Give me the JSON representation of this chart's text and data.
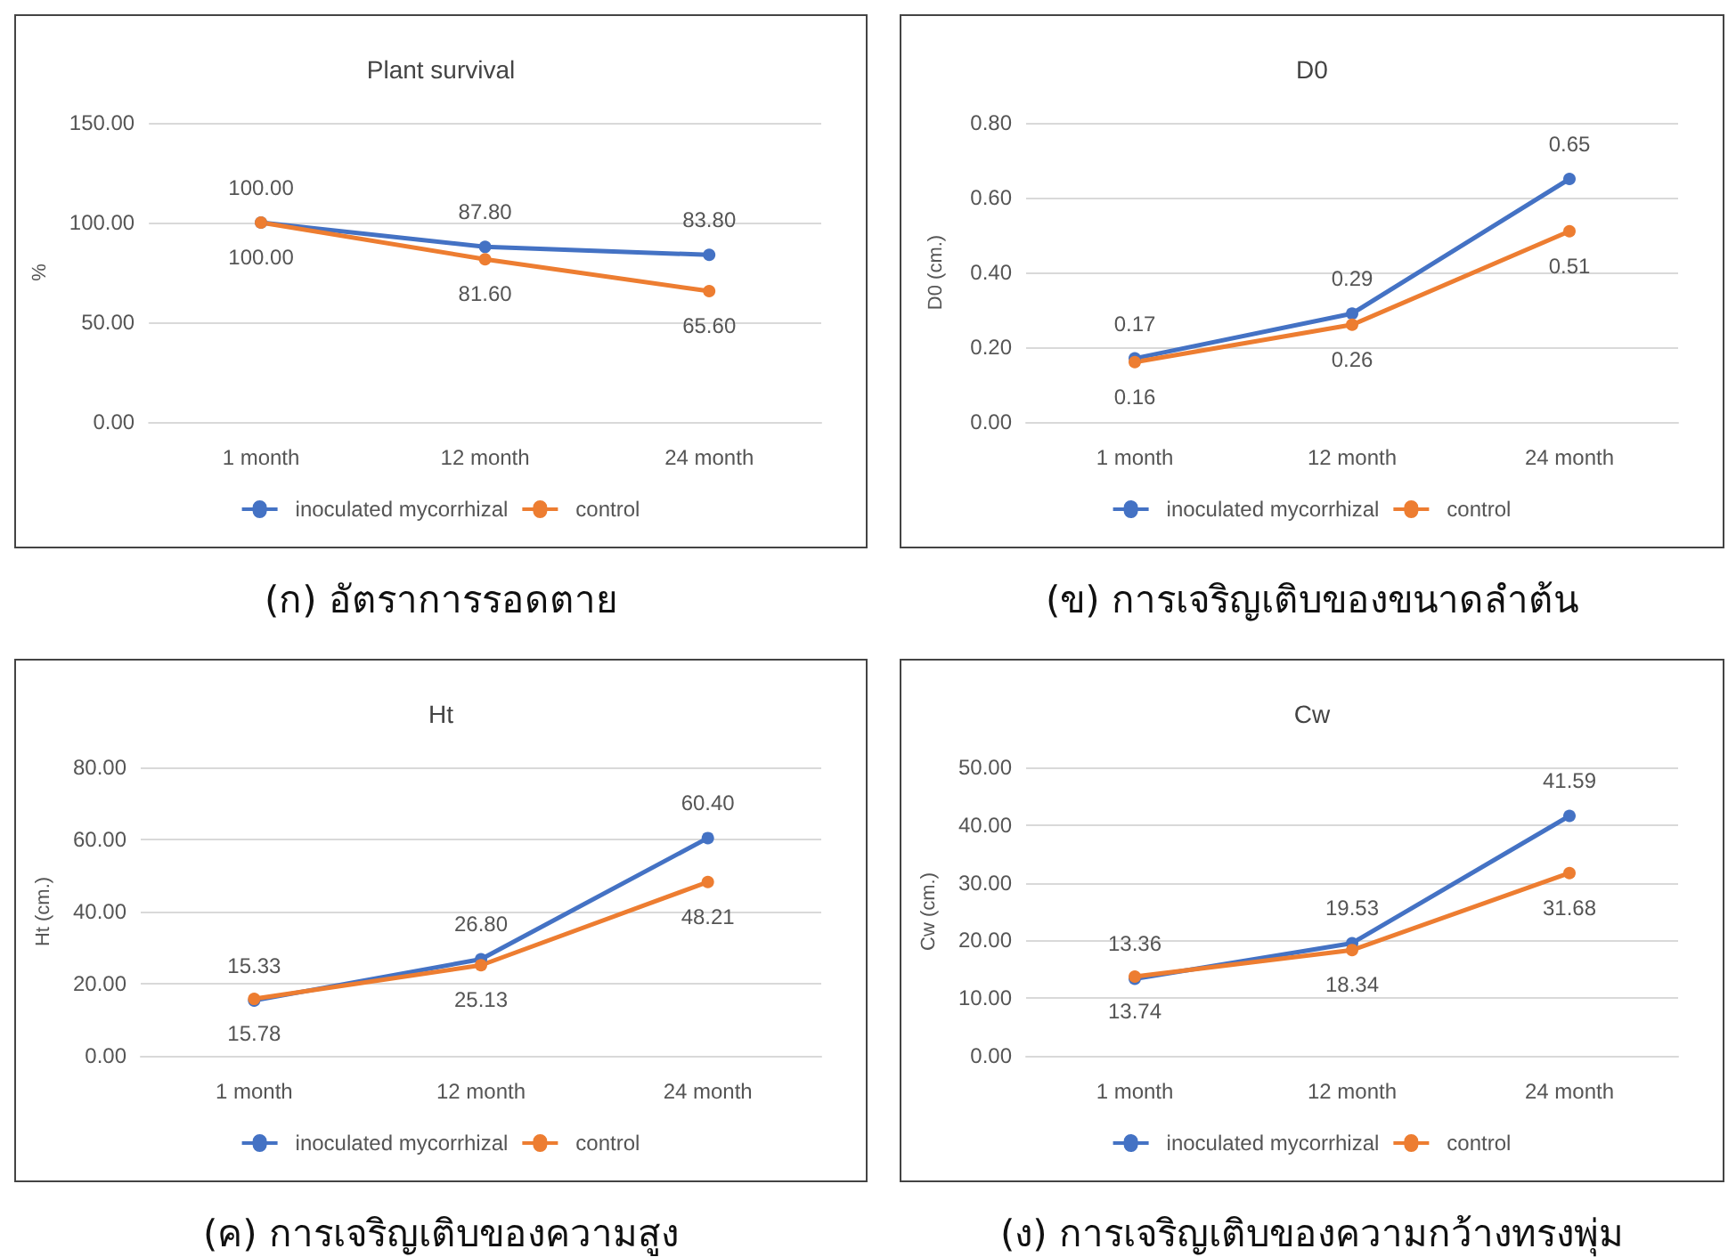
{
  "chart_data": [
    {
      "type": "line",
      "title": "Plant survival",
      "ylabel": "%",
      "categories": [
        "1 month",
        "12 month",
        "24 month"
      ],
      "series": [
        {
          "name": "inoculated mycorrhizal",
          "color": "#4472c4",
          "values": [
            100,
            87.8,
            83.8
          ],
          "value_labels": [
            "100.00",
            "87.80",
            "83.80"
          ]
        },
        {
          "name": "control",
          "color": "#ed7d31",
          "values": [
            100,
            81.6,
            65.6
          ],
          "value_labels": [
            "100.00",
            "81.60",
            "65.60"
          ]
        }
      ],
      "ylim": [
        0,
        150
      ],
      "yticks": [
        {
          "value": 0,
          "label": "0.00"
        },
        {
          "value": 50,
          "label": "50.00"
        },
        {
          "value": 100,
          "label": "100.00"
        },
        {
          "value": 150,
          "label": "150.00"
        }
      ],
      "grid": "y",
      "legend": "bottom",
      "marker": "circle",
      "annotations": [
        "(ก) อัตราการรอดตาย"
      ]
    },
    {
      "type": "line",
      "title": "D0",
      "ylabel": "D0 (cm.)",
      "categories": [
        "1 month",
        "12 month",
        "24 month"
      ],
      "series": [
        {
          "name": "inoculated mycorrhizal",
          "color": "#4472c4",
          "values": [
            0.17,
            0.29,
            0.65
          ],
          "value_labels": [
            "0.17",
            "0.29",
            "0.65"
          ]
        },
        {
          "name": "control",
          "color": "#ed7d31",
          "values": [
            0.16,
            0.26,
            0.51
          ],
          "value_labels": [
            "0.16",
            "0.26",
            "0.51"
          ]
        }
      ],
      "ylim": [
        0,
        0.8
      ],
      "yticks": [
        {
          "value": 0,
          "label": "0.00"
        },
        {
          "value": 0.2,
          "label": "0.20"
        },
        {
          "value": 0.4,
          "label": "0.40"
        },
        {
          "value": 0.6,
          "label": "0.60"
        },
        {
          "value": 0.8,
          "label": "0.80"
        }
      ],
      "grid": "y",
      "legend": "bottom",
      "marker": "circle",
      "annotations": [
        "(ข) การเจริญเติบของขนาดลำต้น"
      ]
    },
    {
      "type": "line",
      "title": "Ht",
      "ylabel": "Ht (cm.)",
      "categories": [
        "1 month",
        "12 month",
        "24 month"
      ],
      "series": [
        {
          "name": "inoculated mycorrhizal",
          "color": "#4472c4",
          "values": [
            15.33,
            26.8,
            60.4
          ],
          "value_labels": [
            "15.33",
            "26.80",
            "60.40"
          ]
        },
        {
          "name": "control",
          "color": "#ed7d31",
          "values": [
            15.78,
            25.13,
            48.21
          ],
          "value_labels": [
            "15.78",
            "25.13",
            "48.21"
          ]
        }
      ],
      "ylim": [
        0,
        80
      ],
      "yticks": [
        {
          "value": 0,
          "label": "0.00"
        },
        {
          "value": 20,
          "label": "20.00"
        },
        {
          "value": 40,
          "label": "40.00"
        },
        {
          "value": 60,
          "label": "60.00"
        },
        {
          "value": 80,
          "label": "80.00"
        }
      ],
      "grid": "y",
      "legend": "bottom",
      "marker": "circle",
      "annotations": [
        "(ค) การเจริญเติบของความสูง"
      ]
    },
    {
      "type": "line",
      "title": "Cw",
      "ylabel": "Cw (cm.)",
      "categories": [
        "1 month",
        "12 month",
        "24 month"
      ],
      "series": [
        {
          "name": "inoculated mycorrhizal",
          "color": "#4472c4",
          "values": [
            13.36,
            19.53,
            41.59
          ],
          "value_labels": [
            "13.36",
            "19.53",
            "41.59"
          ]
        },
        {
          "name": "control",
          "color": "#ed7d31",
          "values": [
            13.74,
            18.34,
            31.68
          ],
          "value_labels": [
            "13.74",
            "18.34",
            "31.68"
          ]
        }
      ],
      "ylim": [
        0,
        50
      ],
      "yticks": [
        {
          "value": 0,
          "label": "0.00"
        },
        {
          "value": 10,
          "label": "10.00"
        },
        {
          "value": 20,
          "label": "20.00"
        },
        {
          "value": 30,
          "label": "30.00"
        },
        {
          "value": 40,
          "label": "40.00"
        },
        {
          "value": 50,
          "label": "50.00"
        }
      ],
      "grid": "y",
      "legend": "bottom",
      "marker": "circle",
      "annotations": [
        "(ง) การเจริญเติบของความกว้างทรงพุ่ม"
      ]
    }
  ]
}
